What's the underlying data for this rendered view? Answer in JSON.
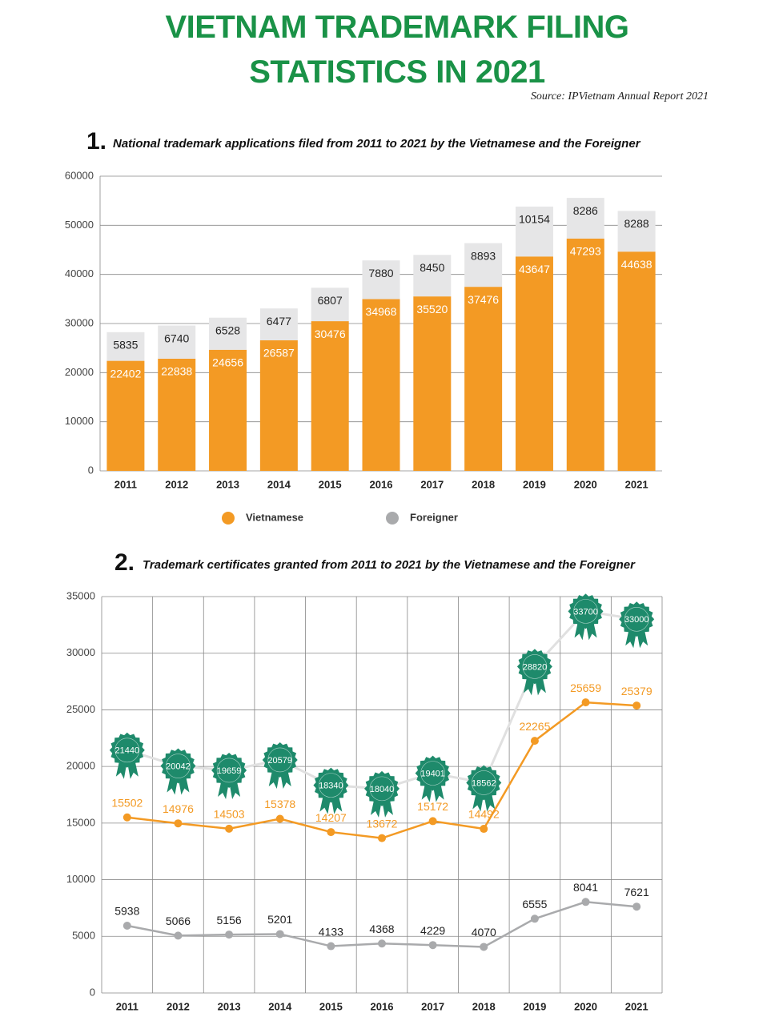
{
  "title": "VIETNAM TRADEMARK FILING STATISTICS IN 2021",
  "source": "Source: IPVietnam Annual Report 2021",
  "chart_data": [
    {
      "type": "bar",
      "stacked": true,
      "number": "1.",
      "title": "National trademark applications filed from 2011 to 2021 by the Vietnamese and the Foreigner",
      "categories": [
        "2011",
        "2012",
        "2013",
        "2014",
        "2015",
        "2016",
        "2017",
        "2018",
        "2019",
        "2020",
        "2021"
      ],
      "series": [
        {
          "name": "Vietnamese",
          "color": "#f39a24",
          "values": [
            22402,
            22838,
            24656,
            26587,
            30476,
            34968,
            35520,
            37476,
            43647,
            47293,
            44638
          ]
        },
        {
          "name": "Foreigner",
          "color": "#e6e6e7",
          "legend_color": "#a9aaac",
          "values": [
            5835,
            6740,
            6528,
            6477,
            6807,
            7880,
            8450,
            8893,
            10154,
            8286,
            8288
          ]
        }
      ],
      "ylim": [
        0,
        60000
      ],
      "yticks": [
        0,
        10000,
        20000,
        30000,
        40000,
        50000,
        60000
      ],
      "grid": true,
      "legend": "bottom"
    },
    {
      "type": "line",
      "number": "2.",
      "title": "Trademark certificates granted from 2011 to 2021 by the Vietnamese and the Foreigner",
      "categories": [
        "2011",
        "2012",
        "2013",
        "2014",
        "2015",
        "2016",
        "2017",
        "2018",
        "2019",
        "2020",
        "2021"
      ],
      "series": [
        {
          "color": "#e0e0e0",
          "marker": "rosette",
          "marker_color": "#1e8a6b",
          "values": [
            21440,
            20042,
            19659,
            20579,
            18340,
            18040,
            19401,
            18562,
            28820,
            33700,
            33000
          ]
        },
        {
          "color": "#f39a24",
          "values": [
            15502,
            14976,
            14503,
            15378,
            14207,
            13672,
            15172,
            14492,
            22265,
            25659,
            25379
          ]
        },
        {
          "color": "#a9aaac",
          "label_color": "#222222",
          "values": [
            5938,
            5066,
            5156,
            5201,
            4133,
            4368,
            4229,
            4070,
            6555,
            8041,
            7621
          ]
        }
      ],
      "ylim": [
        0,
        35000
      ],
      "yticks": [
        0,
        5000,
        10000,
        15000,
        20000,
        25000,
        30000,
        35000
      ],
      "grid": true
    }
  ]
}
